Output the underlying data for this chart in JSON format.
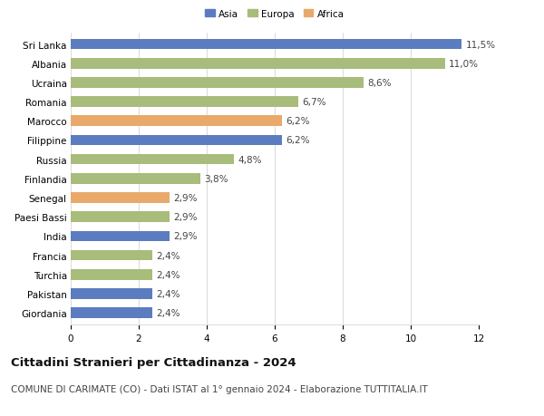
{
  "categories": [
    "Sri Lanka",
    "Albania",
    "Ucraina",
    "Romania",
    "Marocco",
    "Filippine",
    "Russia",
    "Finlandia",
    "Senegal",
    "Paesi Bassi",
    "India",
    "Francia",
    "Turchia",
    "Pakistan",
    "Giordania"
  ],
  "values": [
    11.5,
    11.0,
    8.6,
    6.7,
    6.2,
    6.2,
    4.8,
    3.8,
    2.9,
    2.9,
    2.9,
    2.4,
    2.4,
    2.4,
    2.4
  ],
  "continents": [
    "Asia",
    "Europa",
    "Europa",
    "Europa",
    "Africa",
    "Asia",
    "Europa",
    "Europa",
    "Africa",
    "Europa",
    "Asia",
    "Europa",
    "Europa",
    "Asia",
    "Asia"
  ],
  "colors": {
    "Asia": "#5b7dbf",
    "Europa": "#a8bc7b",
    "Africa": "#e8a96b"
  },
  "legend_labels": [
    "Asia",
    "Europa",
    "Africa"
  ],
  "legend_colors": [
    "#5b7dbf",
    "#a8bc7b",
    "#e8a96b"
  ],
  "xlim": [
    0,
    12
  ],
  "xticks": [
    0,
    2,
    4,
    6,
    8,
    10,
    12
  ],
  "title1": "Cittadini Stranieri per Cittadinanza - 2024",
  "title2": "COMUNE DI CARIMATE (CO) - Dati ISTAT al 1° gennaio 2024 - Elaborazione TUTTITALIA.IT",
  "background_color": "#ffffff",
  "grid_color": "#dddddd",
  "bar_height": 0.55,
  "label_fontsize": 7.5,
  "value_fontsize": 7.5,
  "title1_fontsize": 9.5,
  "title2_fontsize": 7.5
}
